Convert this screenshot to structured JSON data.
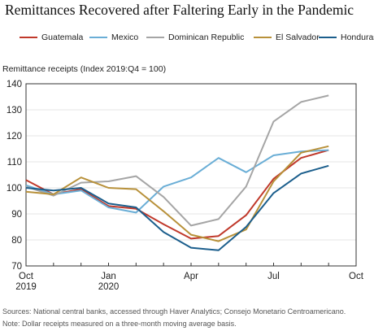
{
  "chart_data": {
    "type": "line",
    "title": "Remittances Recovered after Faltering Early in the Pandemic",
    "ylabel": "Remittance receipts (Index 2019:Q4 = 100)",
    "xlabel": "",
    "ylim": [
      70,
      140
    ],
    "yticks": [
      70,
      80,
      90,
      100,
      110,
      120,
      130,
      140
    ],
    "xlim": [
      "2019-10",
      "2020-10"
    ],
    "xtick_labels": [
      {
        "month": "2019-10",
        "line1": "Oct",
        "line2": "2019"
      },
      {
        "month": "2020-01",
        "line1": "Jan",
        "line2": "2020"
      },
      {
        "month": "2020-04",
        "line1": "Apr",
        "line2": ""
      },
      {
        "month": "2020-07",
        "line1": "Jul",
        "line2": ""
      },
      {
        "month": "2020-10",
        "line1": "Oct",
        "line2": ""
      }
    ],
    "grid": true,
    "legend_position": "top",
    "x": [
      "2019-10",
      "2019-11",
      "2019-12",
      "2020-01",
      "2020-02",
      "2020-03",
      "2020-04",
      "2020-05",
      "2020-06",
      "2020-07",
      "2020-08",
      "2020-09"
    ],
    "series": [
      {
        "name": "Guatemala",
        "color": "#c0392b",
        "values": [
          103.0,
          97.5,
          99.5,
          93.0,
          92.0,
          86.0,
          80.5,
          81.5,
          89.5,
          103.5,
          111.5,
          114.5
        ]
      },
      {
        "name": "Mexico",
        "color": "#6aaed6",
        "values": [
          101.0,
          97.5,
          99.0,
          92.5,
          90.5,
          100.5,
          104.0,
          111.5,
          106.0,
          112.5,
          114.0,
          114.5
        ]
      },
      {
        "name": "Dominican Republic",
        "color": "#a5a5a5",
        "values": [
          100.5,
          97.0,
          102.0,
          102.5,
          104.5,
          96.5,
          85.5,
          88.0,
          100.5,
          125.5,
          133.0,
          135.5
        ]
      },
      {
        "name": "El Salvador",
        "color": "#b8913a",
        "values": [
          98.5,
          97.5,
          104.0,
          100.0,
          99.5,
          91.0,
          82.0,
          79.5,
          84.0,
          102.5,
          113.5,
          116.0
        ]
      },
      {
        "name": "Honduras",
        "color": "#1b5e8c",
        "values": [
          100.0,
          99.0,
          100.0,
          94.0,
          92.5,
          83.0,
          77.0,
          76.0,
          85.0,
          98.0,
          105.5,
          108.5
        ]
      }
    ]
  },
  "footer": {
    "source": "Sources: National central banks, accessed through Haver Analytics; Consejo Monetario Centroamericano.",
    "note": "Note: Dollar receipts measured on a three-month moving average basis."
  }
}
